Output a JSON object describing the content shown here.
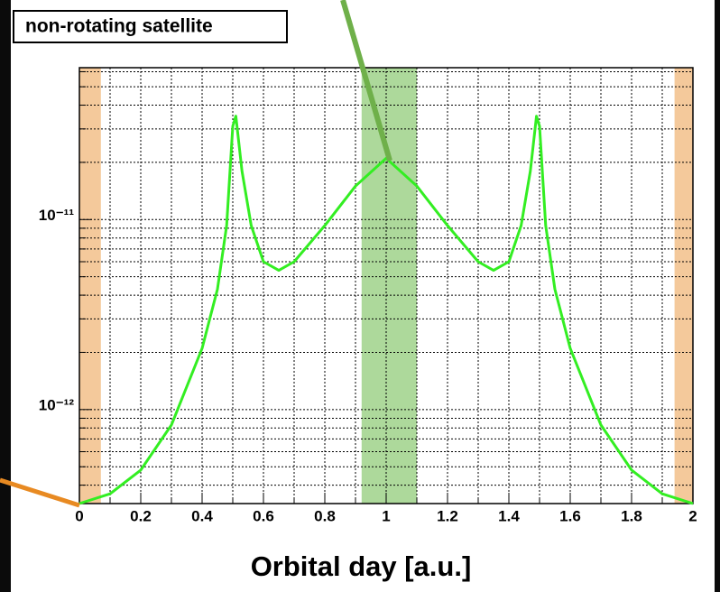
{
  "chart_data": {
    "type": "line",
    "title": "non-rotating satellite",
    "x_label": "Orbital day [a.u.]",
    "x": [
      0,
      0.1,
      0.2,
      0.3,
      0.4,
      0.45,
      0.48,
      0.5,
      0.51,
      0.53,
      0.56,
      0.6,
      0.65,
      0.7,
      0.8,
      0.9,
      1.0,
      1.1,
      1.2,
      1.3,
      1.35,
      1.4,
      1.44,
      1.47,
      1.49,
      1.5,
      1.52,
      1.55,
      1.6,
      1.7,
      1.8,
      1.9,
      2.0
    ],
    "series": [
      {
        "color": "#33ee22",
        "values": [
          3.2e-13,
          3.6e-13,
          4.8e-13,
          8.3e-13,
          2.1e-12,
          4.3e-12,
          9.3e-12,
          3.1e-11,
          3.5e-11,
          1.8e-11,
          9.3e-12,
          6e-12,
          5.4e-12,
          6e-12,
          9.3e-12,
          1.5e-11,
          2.1e-11,
          1.5e-11,
          9.3e-12,
          6e-12,
          5.4e-12,
          6e-12,
          9.3e-12,
          1.8e-11,
          3.5e-11,
          3.1e-11,
          9.3e-12,
          4.3e-12,
          2.1e-12,
          8.3e-13,
          4.8e-13,
          3.6e-13,
          3.2e-13
        ]
      }
    ],
    "xlim": [
      0,
      2
    ],
    "xticks": [
      0,
      0.2,
      0.4,
      0.6,
      0.8,
      1,
      1.2,
      1.4,
      1.6,
      1.8,
      2
    ],
    "xminor": [
      0.1,
      0.3,
      0.5,
      0.7,
      0.9,
      1.1,
      1.3,
      1.5,
      1.7,
      1.9
    ],
    "ylim": [
      3.2e-13,
      6.3e-11
    ],
    "log_y": true,
    "yticks": [
      {
        "value": 1e-12,
        "label": "10⁻¹²"
      },
      {
        "value": 1e-11,
        "label": "10⁻¹¹"
      }
    ],
    "yminor": [
      4e-13,
      5e-13,
      6e-13,
      7e-13,
      8e-13,
      9e-13,
      2e-12,
      3e-12,
      4e-12,
      5e-12,
      6e-12,
      7e-12,
      8e-12,
      9e-12,
      2e-11,
      3e-11,
      4e-11,
      5e-11,
      6e-11
    ],
    "grid": true,
    "bands": [
      {
        "x": [
          0,
          0.07
        ],
        "color": "#f2c08a"
      },
      {
        "x": [
          0.92,
          1.1
        ],
        "color": "#9fd28a"
      },
      {
        "x": [
          1.94,
          2
        ],
        "color": "#f2c08a"
      }
    ]
  }
}
